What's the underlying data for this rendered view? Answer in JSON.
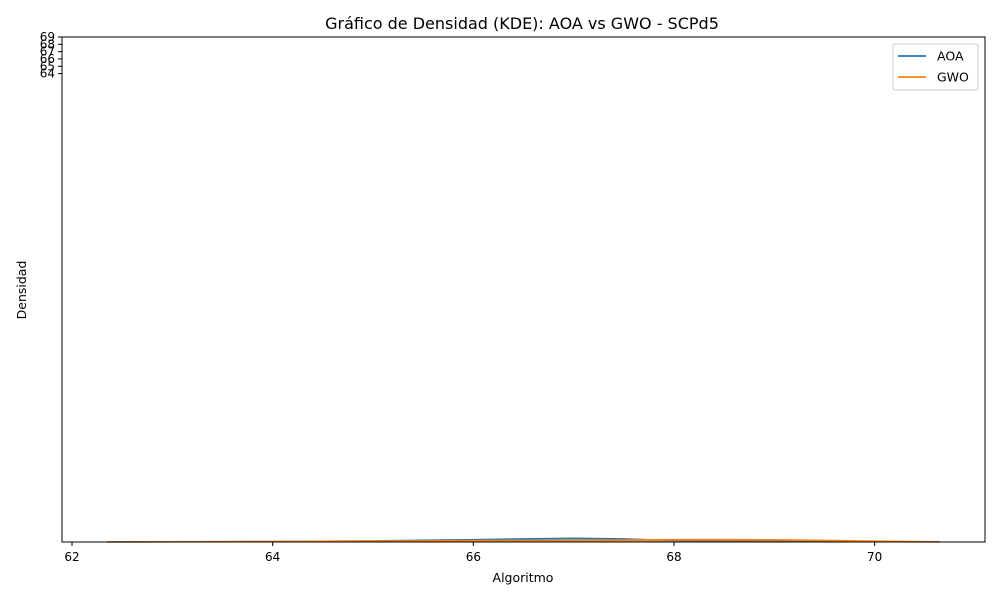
{
  "chart_data": {
    "type": "area",
    "title": "Gráfico de Densidad (KDE): AOA vs GWO - SCPd5",
    "xlabel": "Algoritmo",
    "ylabel": "Densidad",
    "xlim": [
      61.9,
      71.1
    ],
    "ylim": [
      0,
      69
    ],
    "x_ticks": [
      62,
      64,
      66,
      68,
      70
    ],
    "x_tick_labels": [
      "62",
      "64",
      "66",
      "68",
      "70"
    ],
    "y_ticks": [
      64,
      65,
      66,
      67,
      68,
      69
    ],
    "y_tick_labels": [
      "64",
      "65",
      "66",
      "67",
      "68",
      "69"
    ],
    "grid": false,
    "legend_position": "top-right",
    "series": [
      {
        "name": "AOA",
        "color": "#1f77b4",
        "x": [
          62.35,
          63.0,
          63.5,
          64.0,
          64.5,
          65.0,
          65.5,
          66.0,
          66.5,
          67.0,
          67.5,
          68.0,
          68.5,
          69.0,
          69.5,
          70.0,
          70.65
        ],
        "y": [
          0.02,
          0.03,
          0.05,
          0.07,
          0.1,
          0.15,
          0.24,
          0.32,
          0.42,
          0.52,
          0.42,
          0.2,
          0.13,
          0.1,
          0.07,
          0.04,
          0.02
        ]
      },
      {
        "name": "GWO",
        "color": "#ff7f0e",
        "x": [
          62.35,
          63.0,
          63.5,
          64.0,
          64.5,
          65.0,
          65.5,
          66.0,
          66.5,
          67.0,
          67.5,
          68.0,
          68.5,
          69.0,
          69.5,
          70.0,
          70.65
        ],
        "y": [
          0.02,
          0.03,
          0.05,
          0.07,
          0.1,
          0.13,
          0.16,
          0.2,
          0.22,
          0.24,
          0.28,
          0.32,
          0.33,
          0.31,
          0.22,
          0.12,
          0.03
        ]
      }
    ]
  }
}
